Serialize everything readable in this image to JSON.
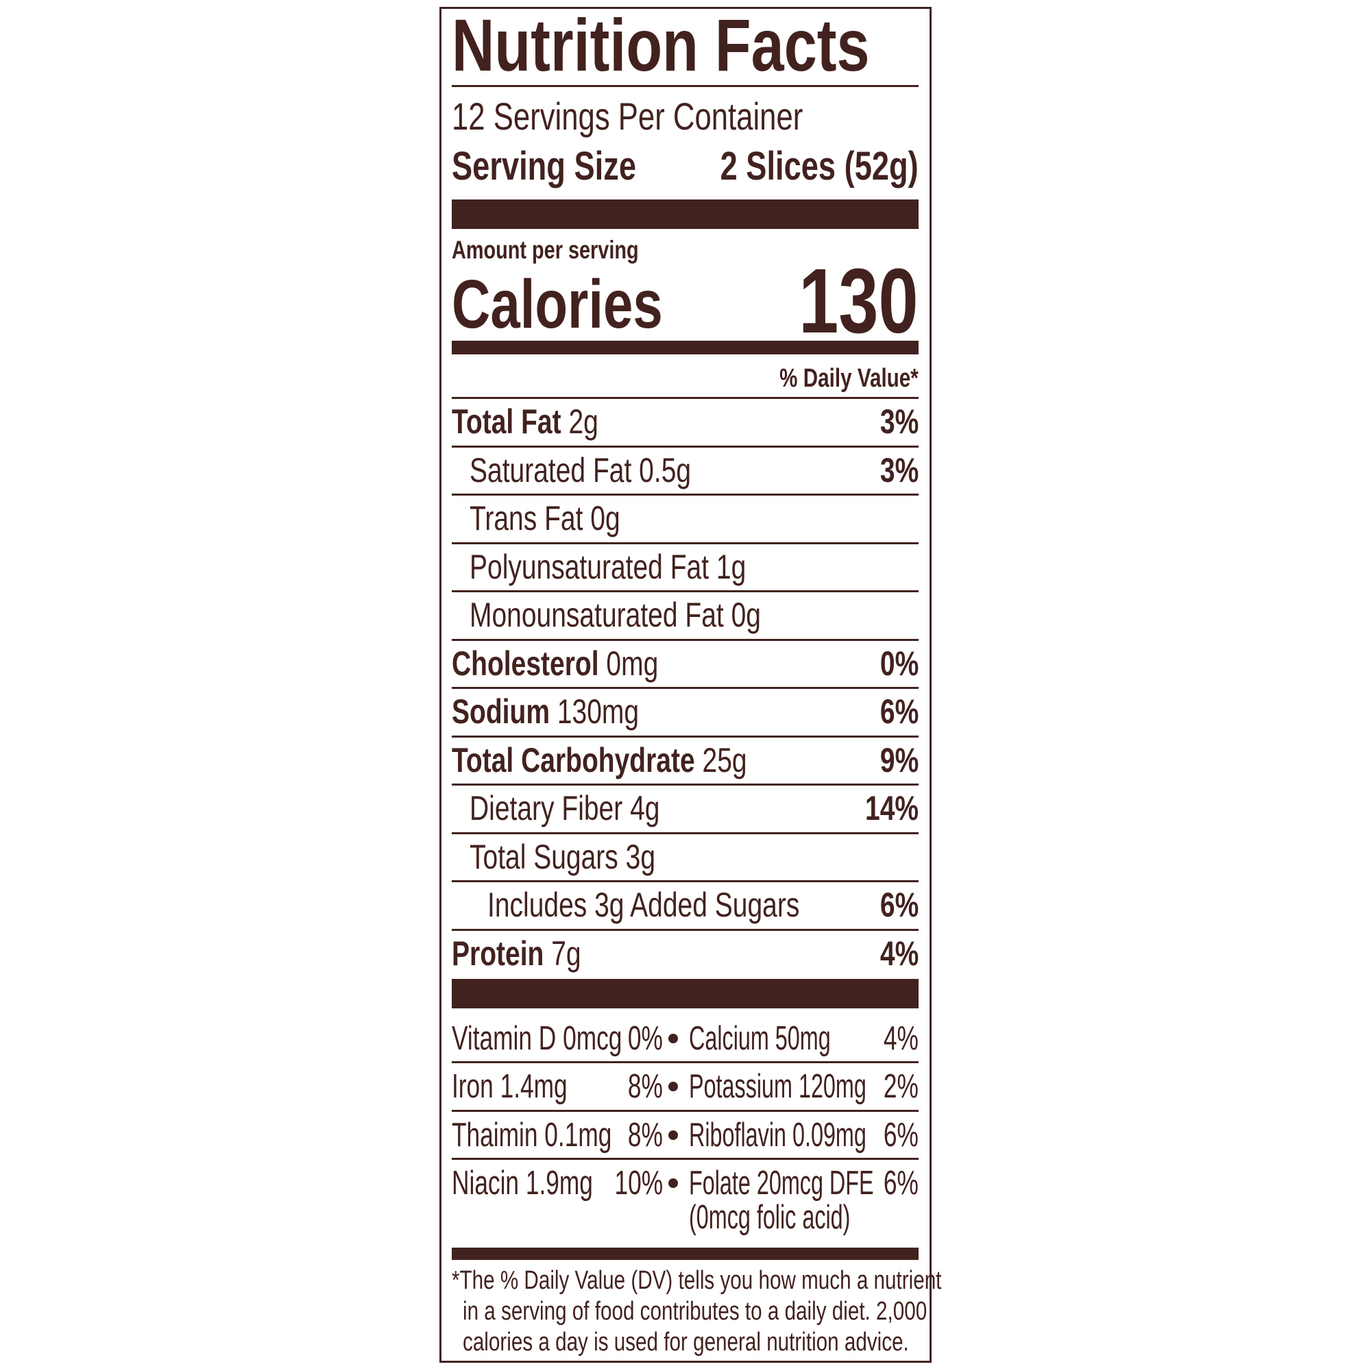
{
  "title": "Nutrition Facts",
  "servings_per_container": "12 Servings Per Container",
  "serving_size": {
    "label": "Serving Size",
    "value": "2 Slices (52g)"
  },
  "amount_per_serving": "Amount per serving",
  "calories": {
    "label": "Calories",
    "value": "130"
  },
  "daily_value_header": "% Daily Value*",
  "nutrients": [
    {
      "name": "Total Fat",
      "amount": "2g",
      "dv": "3%",
      "bold": true,
      "indent": 0
    },
    {
      "name": "Saturated Fat",
      "amount": "0.5g",
      "dv": "3%",
      "bold": false,
      "indent": 1
    },
    {
      "name": "Trans Fat",
      "amount": "0g",
      "dv": "",
      "bold": false,
      "indent": 1
    },
    {
      "name": "Polyunsaturated Fat",
      "amount": "1g",
      "dv": "",
      "bold": false,
      "indent": 1
    },
    {
      "name": "Monounsaturated Fat",
      "amount": "0g",
      "dv": "",
      "bold": false,
      "indent": 1
    },
    {
      "name": "Cholesterol",
      "amount": "0mg",
      "dv": "0%",
      "bold": true,
      "indent": 0
    },
    {
      "name": "Sodium",
      "amount": "130mg",
      "dv": "6%",
      "bold": true,
      "indent": 0
    },
    {
      "name": "Total Carbohydrate",
      "amount": "25g",
      "dv": "9%",
      "bold": true,
      "indent": 0
    },
    {
      "name": "Dietary Fiber",
      "amount": "4g",
      "dv": "14%",
      "bold": false,
      "indent": 1
    },
    {
      "name": "Total Sugars",
      "amount": "3g",
      "dv": "",
      "bold": false,
      "indent": 1
    },
    {
      "name": "Includes 3g Added Sugars",
      "amount": "",
      "dv": "6%",
      "bold": false,
      "indent": 2
    },
    {
      "name": "Protein",
      "amount": "7g",
      "dv": "4%",
      "bold": true,
      "indent": 0
    }
  ],
  "vitamins": [
    {
      "left": {
        "name": "Vitamin D 0mcg",
        "dv": "0%"
      },
      "right": {
        "name": "Calcium 50mg",
        "dv": "4%"
      }
    },
    {
      "left": {
        "name": "Iron 1.4mg",
        "dv": "8%"
      },
      "right": {
        "name": "Potassium 120mg",
        "dv": "2%"
      }
    },
    {
      "left": {
        "name": "Thaimin 0.1mg",
        "dv": "8%"
      },
      "right": {
        "name": "Riboflavin 0.09mg",
        "dv": "6%"
      }
    },
    {
      "left": {
        "name": "Niacin 1.9mg",
        "dv": "10%"
      },
      "right": {
        "name": "Folate 20mcg DFE",
        "dv": "6%",
        "note": "(0mcg folic acid)"
      }
    }
  ],
  "footnote": [
    "*The % Daily Value (DV) tells you how much a nutrient",
    "in a serving of food contributes to a daily diet. 2,000",
    "calories a day is used for general nutrition advice."
  ],
  "colors": {
    "ink": "#42221f",
    "background": "#ffffff"
  }
}
